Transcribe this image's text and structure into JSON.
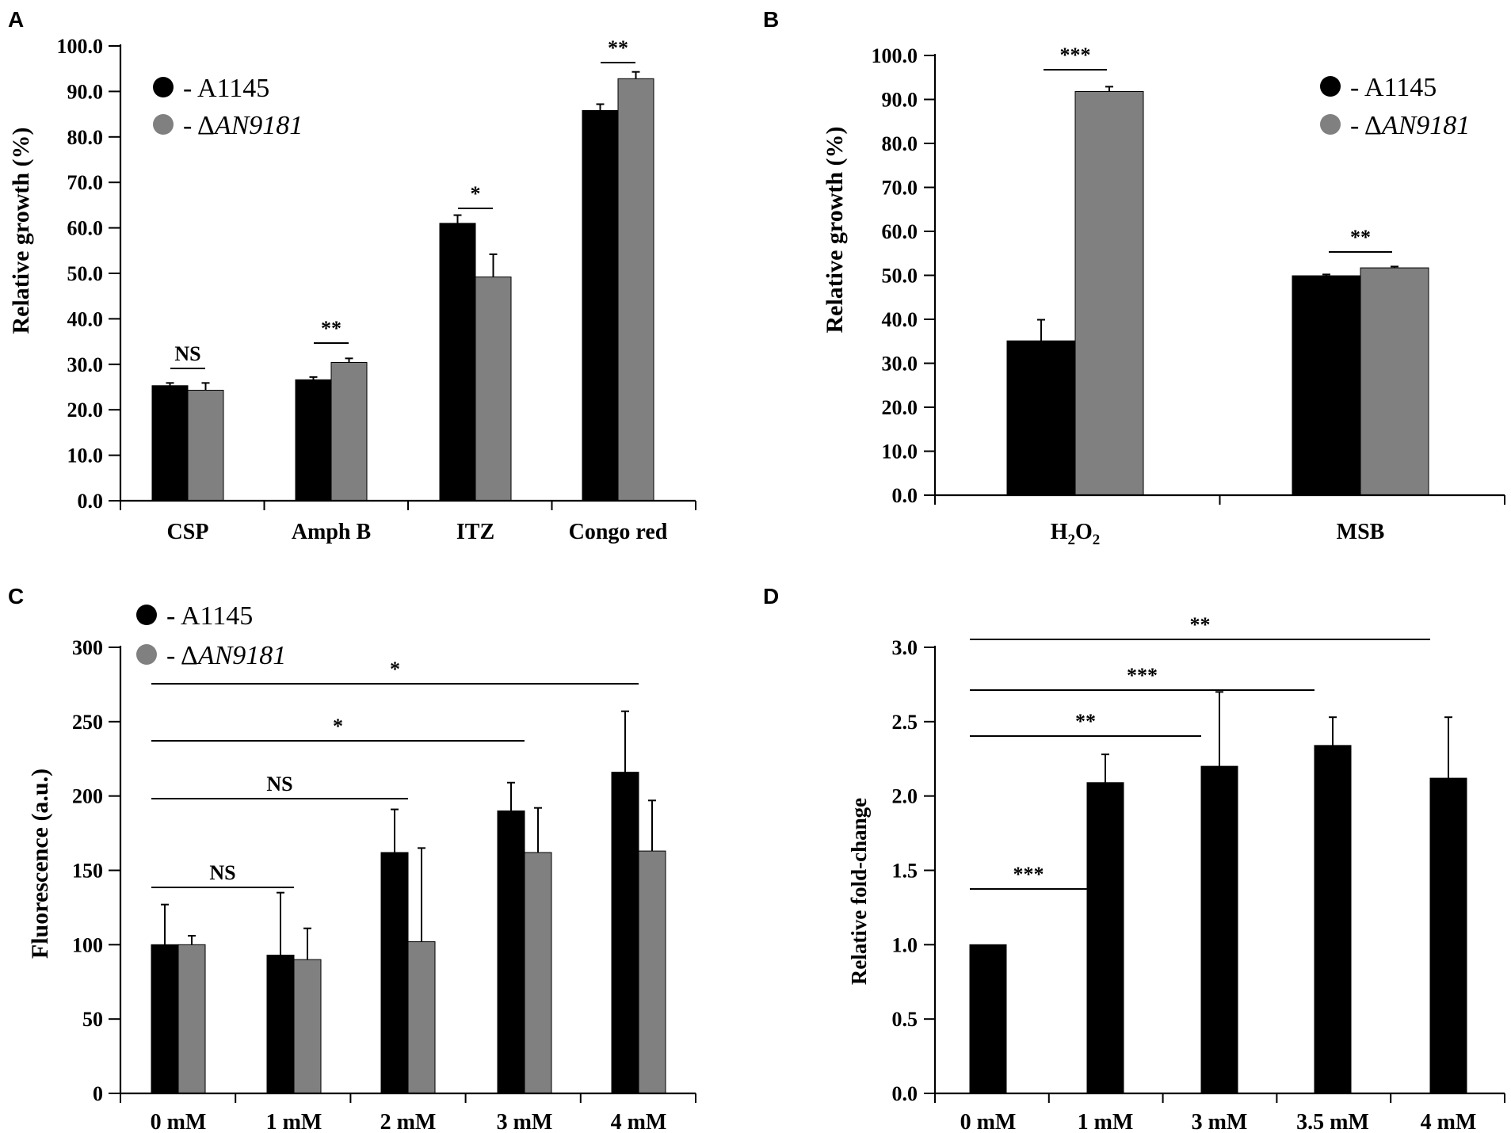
{
  "colors": {
    "a1145": "#000000",
    "mutant": "#808080",
    "axis": "#000000"
  },
  "chart_data": [
    {
      "panel": "A",
      "type": "bar",
      "ylabel": "Relative growth (%)",
      "ylim": [
        0,
        100
      ],
      "yticks": [
        "0.0",
        "10.0",
        "20.0",
        "30.0",
        "40.0",
        "50.0",
        "60.0",
        "70.0",
        "80.0",
        "90.0",
        "100.0"
      ],
      "categories": [
        "CSP",
        "Amph B",
        "ITZ",
        "Congo red"
      ],
      "series": [
        {
          "name": "- A1145",
          "values": [
            25.3,
            26.6,
            61.0,
            85.8
          ],
          "errors": [
            0.6,
            0.6,
            1.8,
            1.4
          ]
        },
        {
          "name": "- ΔAN9181",
          "values": [
            24.3,
            30.4,
            49.2,
            92.8
          ],
          "errors": [
            1.6,
            0.9,
            5.0,
            1.5
          ]
        }
      ],
      "significance": [
        "NS",
        "**",
        "*",
        "**"
      ]
    },
    {
      "panel": "B",
      "type": "bar",
      "ylabel": "Relative growth (%)",
      "ylim": [
        0,
        100
      ],
      "yticks": [
        "0.0",
        "10.0",
        "20.0",
        "30.0",
        "40.0",
        "50.0",
        "60.0",
        "70.0",
        "80.0",
        "90.0",
        "100.0"
      ],
      "categories": [
        "H2O2",
        "MSB"
      ],
      "series": [
        {
          "name": "- A1145",
          "values": [
            35.1,
            49.9
          ],
          "errors": [
            4.8,
            0.3
          ]
        },
        {
          "name": "- ΔAN9181",
          "values": [
            91.8,
            51.7
          ],
          "errors": [
            1.1,
            0.3
          ]
        }
      ],
      "significance": [
        "***",
        "**"
      ]
    },
    {
      "panel": "C",
      "type": "bar",
      "ylabel": "Fluorescence (a.u.)",
      "ylim": [
        0,
        300
      ],
      "yticks": [
        "0",
        "50",
        "100",
        "150",
        "200",
        "250",
        "300"
      ],
      "categories": [
        "0 mM",
        "1 mM",
        "2 mM",
        "3 mM",
        "4 mM"
      ],
      "series": [
        {
          "name": "- A1145",
          "values": [
            100,
            93,
            162,
            190,
            216
          ],
          "errors": [
            27,
            42,
            29,
            19,
            41
          ]
        },
        {
          "name": "- ΔAN9181",
          "values": [
            100,
            90,
            102,
            162,
            163
          ],
          "errors": [
            6,
            21,
            63,
            30,
            34
          ]
        }
      ],
      "brackets": [
        {
          "from": 0,
          "to": 1,
          "label": "NS"
        },
        {
          "from": 0,
          "to": 2,
          "label": "NS"
        },
        {
          "from": 0,
          "to": 3,
          "label": "*"
        },
        {
          "from": 0,
          "to": 4,
          "label": "*"
        }
      ]
    },
    {
      "panel": "D",
      "type": "bar",
      "ylabel": "Relative fold-change",
      "ylim": [
        0,
        3
      ],
      "yticks": [
        "0.0",
        "0.5",
        "1.0",
        "1.5",
        "2.0",
        "2.5",
        "3.0"
      ],
      "categories": [
        "0 mM",
        "1 mM",
        "3 mM",
        "3.5 mM",
        "4 mM"
      ],
      "series": [
        {
          "name": "A1145",
          "values": [
            1.0,
            2.09,
            2.2,
            2.34,
            2.12
          ],
          "errors": [
            0,
            0.19,
            0.5,
            0.19,
            0.41
          ]
        }
      ],
      "brackets": [
        {
          "from": 0,
          "to": 1,
          "label": "***"
        },
        {
          "from": 0,
          "to": 2,
          "label": "**"
        },
        {
          "from": 0,
          "to": 3,
          "label": "***"
        },
        {
          "from": 0,
          "to": 4,
          "label": "**"
        }
      ]
    }
  ]
}
